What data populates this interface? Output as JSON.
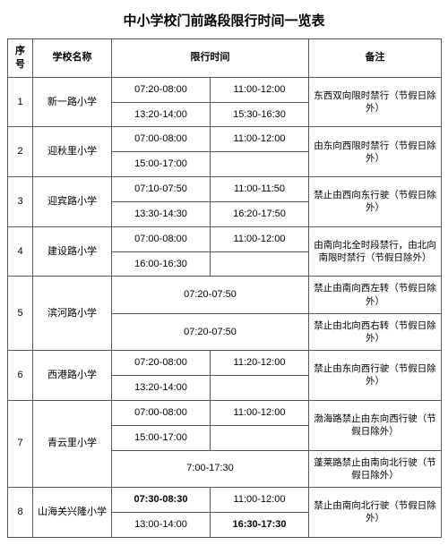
{
  "title": "中小学校门前路段限行时间一览表",
  "headers": {
    "idx": "序号",
    "name": "学校名称",
    "time": "限行时间",
    "note": "备注"
  },
  "rows": [
    {
      "idx": "1",
      "name": "新一路小学",
      "times": [
        [
          "07:20-08:00",
          "11:00-12:00"
        ],
        [
          "13:20-14:00",
          "15:30-16:30"
        ]
      ],
      "note": "东西双向限时禁行（节假日除外）"
    },
    {
      "idx": "2",
      "name": "迎秋里小学",
      "times": [
        [
          "07:00-08:00",
          "11:00-12:00"
        ],
        [
          "15:00-17:00",
          ""
        ]
      ],
      "note": "由东向西限时禁行（节假日除外）"
    },
    {
      "idx": "3",
      "name": "迎宾路小学",
      "times": [
        [
          "07:10-07:50",
          "11:00-11:50"
        ],
        [
          "13:30-14:30",
          "16:20-17:50"
        ]
      ],
      "note": "禁止由西向东行驶（节假日除外）"
    },
    {
      "idx": "4",
      "name": "建设路小学",
      "times": [
        [
          "07:00-08:00",
          "11:00-12:00"
        ],
        [
          "16:00-16:30",
          ""
        ]
      ],
      "note": "由南向北全时段禁行，由北向南限时禁行（节假日除外）"
    },
    {
      "idx": "5",
      "name": "滨河路小学",
      "times_span": [
        "07:20-07:50",
        "07:20-07:50"
      ],
      "notes": [
        "禁止由南向西左转（节假日除外）",
        "禁止由北向西右转（节假日除外）"
      ]
    },
    {
      "idx": "6",
      "name": "西港路小学",
      "times": [
        [
          "07:20-08:00",
          "11:20-12:00"
        ],
        [
          "13:20-14:00",
          ""
        ]
      ],
      "note": "禁止由东向西行驶（节假日除外）"
    },
    {
      "idx": "7",
      "name": "青云里小学",
      "part1_times": [
        [
          "07:00-08:00",
          "11:00-12:00"
        ],
        [
          "15:00-17:00",
          ""
        ]
      ],
      "part1_note": "渤海路禁止由东向西行驶（节假日除外）",
      "part2_time": "7:00-17:30",
      "part2_note": "蓬莱路禁止由南向北行驶（节假日除外）"
    },
    {
      "idx": "8",
      "name": "山海关兴隆小学",
      "times": [
        [
          "07:30-08:30",
          "11:00-12:00"
        ],
        [
          "13:00-14:00",
          "16:30-17:30"
        ]
      ],
      "bold": [
        [
          true,
          false
        ],
        [
          false,
          true
        ]
      ],
      "note": "禁止由南向北行驶（节假日除外）"
    }
  ]
}
